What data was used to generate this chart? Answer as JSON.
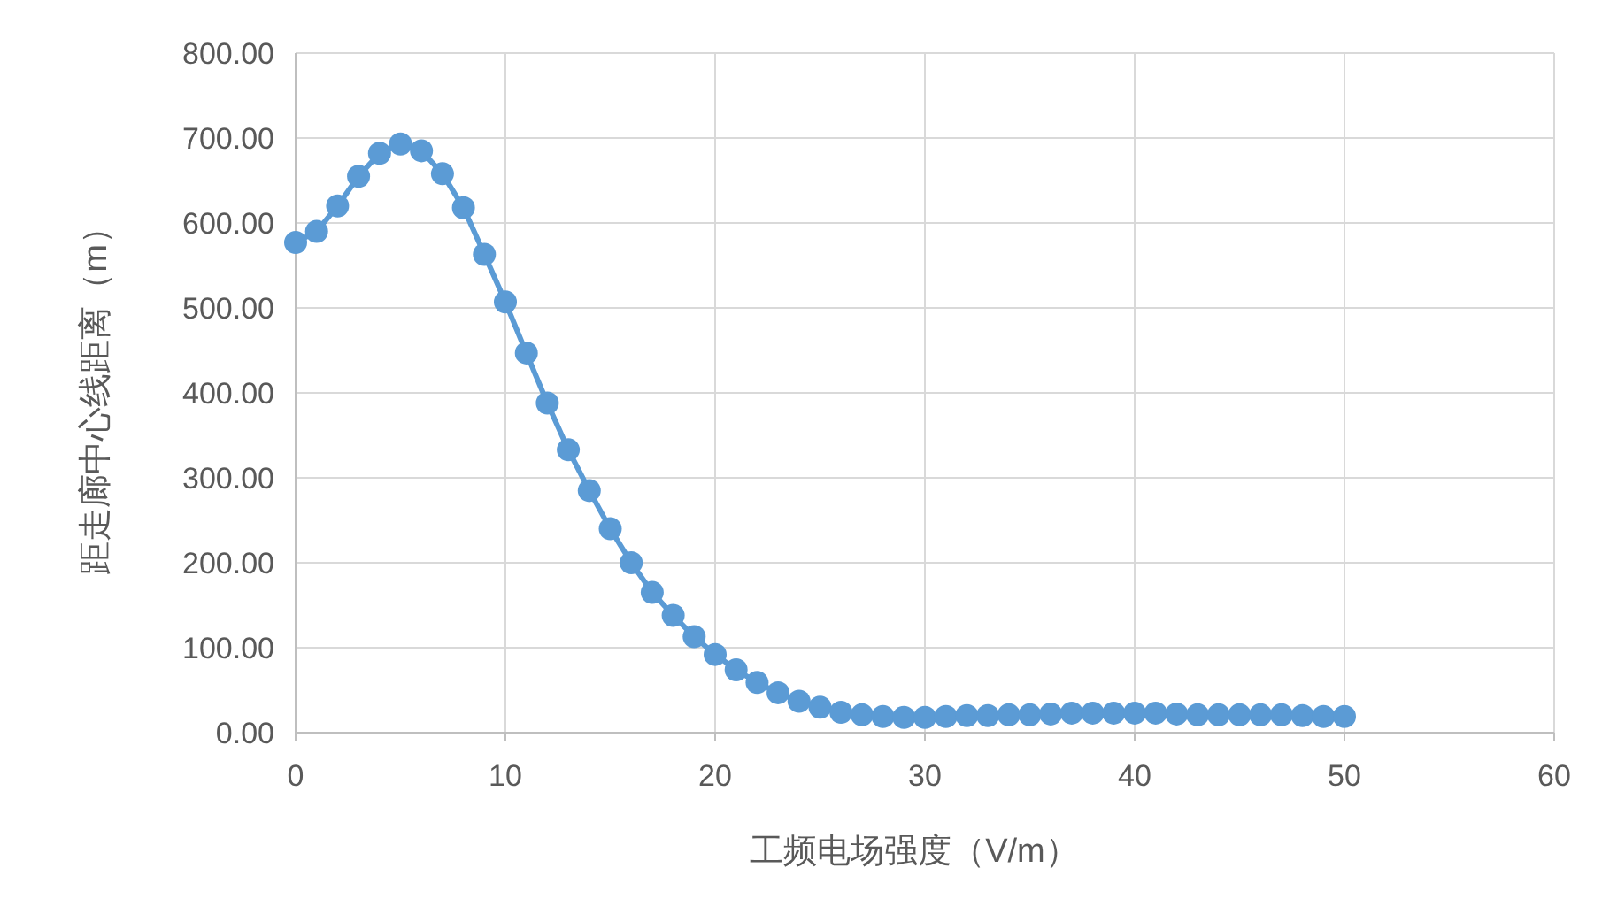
{
  "chart_data": {
    "type": "line",
    "xlabel": "工频电场强度（V/m）",
    "ylabel": "距走廊中心线距离（m）",
    "xlim": [
      0,
      60
    ],
    "ylim": [
      0,
      800
    ],
    "xticks": [
      0,
      10,
      20,
      30,
      40,
      50,
      60
    ],
    "yticks": [
      {
        "value": 0,
        "label": "0.00"
      },
      {
        "value": 100,
        "label": "100.00"
      },
      {
        "value": 200,
        "label": "200.00"
      },
      {
        "value": 300,
        "label": "300.00"
      },
      {
        "value": 400,
        "label": "400.00"
      },
      {
        "value": 500,
        "label": "500.00"
      },
      {
        "value": 600,
        "label": "600.00"
      },
      {
        "value": 700,
        "label": "700.00"
      },
      {
        "value": 800,
        "label": "800.00"
      }
    ],
    "grid": true,
    "marker": "circle",
    "series": [
      {
        "color": "#5b9bd5",
        "x": [
          0,
          1,
          2,
          3,
          4,
          5,
          6,
          7,
          8,
          9,
          10,
          11,
          12,
          13,
          14,
          15,
          16,
          17,
          18,
          19,
          20,
          21,
          22,
          23,
          24,
          25,
          26,
          27,
          28,
          29,
          30,
          31,
          32,
          33,
          34,
          35,
          36,
          37,
          38,
          39,
          40,
          41,
          42,
          43,
          44,
          45,
          46,
          47,
          48,
          49,
          50
        ],
        "values": [
          577,
          590,
          620,
          655,
          682,
          693,
          685,
          658,
          618,
          563,
          507,
          447,
          388,
          333,
          285,
          240,
          200,
          165,
          138,
          113,
          92,
          74,
          59,
          47,
          37,
          30,
          24,
          21,
          19,
          18,
          18,
          19,
          20,
          20,
          21,
          21,
          22,
          23,
          23,
          23,
          23,
          23,
          22,
          21,
          21,
          21,
          21,
          21,
          20,
          19,
          19
        ]
      }
    ]
  }
}
